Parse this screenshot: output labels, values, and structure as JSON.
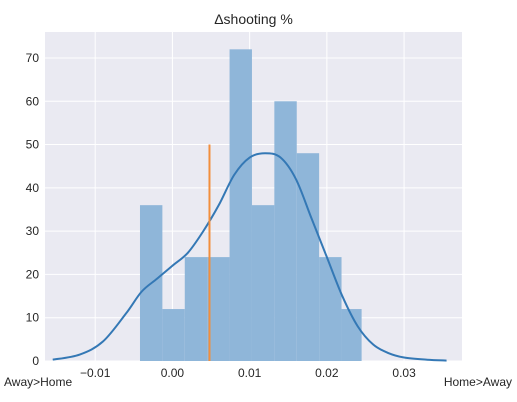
{
  "chart_data": {
    "type": "bar",
    "title": "Δshooting %",
    "xlabel": "",
    "ylabel": "",
    "xlim": [
      -0.0165,
      0.0375
    ],
    "ylim": [
      0,
      76
    ],
    "xticks": [
      -0.01,
      0.0,
      0.01,
      0.02,
      0.03
    ],
    "xtick_labels": [
      "−0.01",
      "0.00",
      "0.01",
      "0.02",
      "0.03"
    ],
    "yticks": [
      0,
      10,
      20,
      30,
      40,
      50,
      60,
      70
    ],
    "ytick_labels": [
      "0",
      "10",
      "20",
      "30",
      "40",
      "50",
      "60",
      "70"
    ],
    "grid": true,
    "histogram": {
      "bin_edges": [
        -0.0042,
        -0.0013,
        0.0016,
        0.0045,
        0.0074,
        0.0103,
        0.0132,
        0.0161,
        0.019,
        0.0219,
        0.0245
      ],
      "counts": [
        36,
        12,
        24,
        24,
        72,
        36,
        60,
        48,
        24,
        12
      ],
      "color": "#8fb6d9"
    },
    "kde": {
      "x": [
        -0.0155,
        -0.012,
        -0.009,
        -0.006,
        -0.004,
        -0.002,
        0.0,
        0.002,
        0.004,
        0.006,
        0.008,
        0.01,
        0.012,
        0.014,
        0.016,
        0.018,
        0.02,
        0.022,
        0.024,
        0.026,
        0.028,
        0.03,
        0.033,
        0.0355
      ],
      "y": [
        0.3,
        1.5,
        4.5,
        11,
        16,
        19,
        22,
        25,
        30,
        36,
        43,
        47,
        48,
        47,
        42,
        33,
        24,
        15,
        8,
        3.8,
        1.8,
        0.8,
        0.3,
        0.1
      ],
      "color": "#3478b5"
    },
    "marker_line": {
      "x": 0.0048,
      "y_top": 50,
      "color": "#f28e3c"
    },
    "annotations": [
      {
        "text": "Away>Home",
        "position": "bottom-left"
      },
      {
        "text": "Home>Away",
        "position": "bottom-right"
      }
    ],
    "colors": {
      "plot_background": "#eaeaf2",
      "grid": "#ffffff"
    }
  }
}
